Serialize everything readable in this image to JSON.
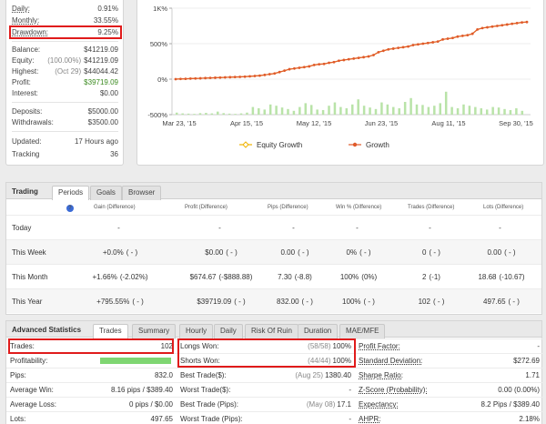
{
  "stats": {
    "daily": {
      "label": "Daily:",
      "value": "0.91%"
    },
    "monthly": {
      "label": "Monthly:",
      "value": "33.55%"
    },
    "drawdown": {
      "label": "Drawdown:",
      "value": "9.25%"
    },
    "balance": {
      "label": "Balance:",
      "value": "$41219.09"
    },
    "equity": {
      "label": "Equity:",
      "note": "(100.00%)",
      "value": "$41219.09"
    },
    "highest": {
      "label": "Highest:",
      "note": "(Oct 29)",
      "value": "$44044.42"
    },
    "profit": {
      "label": "Profit:",
      "value": "$39719.09"
    },
    "interest": {
      "label": "Interest:",
      "value": "$0.00"
    },
    "deposits": {
      "label": "Deposits:",
      "value": "$5000.00"
    },
    "withdrawals": {
      "label": "Withdrawals:",
      "value": "$3500.00"
    },
    "updated": {
      "label": "Updated:",
      "value": "17 Hours ago"
    },
    "tracking": {
      "label": "Tracking",
      "value": "36"
    }
  },
  "chart_data": {
    "type": "line",
    "x_ticks": [
      "Mar 23, '15",
      "Apr 15, '15",
      "May 12, '15",
      "Jun 23, '15",
      "Aug 11, '15",
      "Sep 30, '15"
    ],
    "y_ticks": [
      "1K%",
      "500%",
      "0%",
      "-500%"
    ],
    "ylim": [
      -500,
      1000
    ],
    "series": [
      {
        "name": "Equity Growth",
        "color": "#f0b400",
        "values": [
          0,
          3,
          5,
          8,
          10,
          12,
          15,
          18,
          20,
          22,
          25,
          28,
          30,
          32,
          35,
          40,
          45,
          50,
          60,
          70,
          80,
          100,
          120,
          140,
          150,
          160,
          170,
          180,
          200,
          210,
          215,
          230,
          240,
          260,
          270,
          280,
          290,
          300,
          310,
          320,
          340,
          380,
          400,
          420,
          430,
          440,
          450,
          460,
          480,
          490,
          500,
          510,
          520,
          530,
          560,
          570,
          580,
          600,
          610,
          620,
          640,
          700,
          720,
          730,
          740,
          750,
          760,
          770,
          780,
          790,
          800,
          805
        ]
      },
      {
        "name": "Growth",
        "color": "#e05a2a",
        "values": [
          0,
          3,
          5,
          8,
          10,
          12,
          15,
          18,
          20,
          22,
          25,
          28,
          30,
          32,
          35,
          40,
          45,
          50,
          60,
          70,
          80,
          100,
          120,
          140,
          150,
          160,
          170,
          180,
          200,
          210,
          215,
          230,
          240,
          260,
          270,
          280,
          290,
          300,
          310,
          320,
          340,
          380,
          400,
          420,
          430,
          440,
          450,
          460,
          480,
          490,
          500,
          510,
          520,
          530,
          560,
          570,
          580,
          600,
          610,
          620,
          640,
          700,
          720,
          730,
          740,
          750,
          760,
          770,
          780,
          790,
          800,
          805
        ]
      }
    ],
    "bars": [
      8,
      5,
      4,
      3,
      6,
      7,
      5,
      12,
      6,
      4,
      3,
      5,
      8,
      30,
      25,
      20,
      40,
      35,
      28,
      22,
      15,
      30,
      45,
      38,
      20,
      18,
      35,
      48,
      30,
      25,
      40,
      60,
      35,
      28,
      22,
      48,
      40,
      30,
      25,
      50,
      65,
      40,
      38,
      30,
      35,
      45,
      90,
      30,
      25,
      40,
      35,
      30,
      25,
      20,
      30,
      28,
      22,
      18,
      25,
      15
    ],
    "bars_color": "#b9e3a8"
  },
  "trading": {
    "title": "Trading",
    "tabs": [
      "Periods",
      "Goals",
      "Browser"
    ],
    "headers": [
      "Gain (Difference)",
      "Profit (Difference)",
      "Pips (Difference)",
      "Win % (Difference)",
      "Trades (Difference)",
      "Lots (Difference)"
    ],
    "rows": [
      {
        "label": "Today",
        "gain": "-",
        "gain_diff": "",
        "profit": "-",
        "profit_diff": "",
        "pips": "-",
        "pips_diff": "",
        "win": "-",
        "win_diff": "",
        "trades": "-",
        "trades_diff": "",
        "lots": "-",
        "lots_diff": ""
      },
      {
        "label": "This Week",
        "gain": "+0.0%",
        "gain_diff": "( - )",
        "profit": "$0.00",
        "profit_diff": "( - )",
        "pips": "0.00",
        "pips_diff": "( - )",
        "win": "0%",
        "win_diff": "( - )",
        "trades": "0",
        "trades_diff": "( - )",
        "lots": "0.00",
        "lots_diff": "( - )"
      },
      {
        "label": "This Month",
        "gain": "+1.66%",
        "gain_diff": "(-2.02%)",
        "profit": "$674.67",
        "profit_diff": "(-$888.88)",
        "pips": "7.30",
        "pips_diff": "(-8.8)",
        "win": "100%",
        "win_diff": "(0%)",
        "trades": "2",
        "trades_diff": "(-1)",
        "lots": "18.68",
        "lots_diff": "(-10.67)"
      },
      {
        "label": "This Year",
        "gain": "+795.55%",
        "gain_diff": "( - )",
        "profit": "$39719.09",
        "profit_diff": "( - )",
        "pips": "832.00",
        "pips_diff": "( - )",
        "win": "100%",
        "win_diff": "( - )",
        "trades": "102",
        "trades_diff": "( - )",
        "lots": "497.65",
        "lots_diff": "( - )"
      }
    ]
  },
  "advanced": {
    "title": "Advanced Statistics",
    "tabs": [
      "Trades",
      "Summary",
      "Hourly",
      "Daily",
      "Risk Of Ruin",
      "Duration",
      "MAE/MFE"
    ],
    "col1": [
      {
        "label": "Trades:",
        "note": "",
        "value": "102"
      },
      {
        "label": "Profitability:",
        "note": "",
        "value": ""
      },
      {
        "label": "Pips:",
        "note": "",
        "value": "832.0"
      },
      {
        "label": "Average Win:",
        "note": "",
        "value": "8.16 pips / $389.40"
      },
      {
        "label": "Average Loss:",
        "note": "",
        "value": "0 pips / $0.00"
      },
      {
        "label": "Lots:",
        "note": "",
        "value": "497.65"
      }
    ],
    "col2": [
      {
        "label": "Longs Won:",
        "note": "(58/58)",
        "value": "100%"
      },
      {
        "label": "Shorts Won:",
        "note": "(44/44)",
        "value": "100%"
      },
      {
        "label": "Best Trade($):",
        "note": "(Aug 25)",
        "value": "1380.40"
      },
      {
        "label": "Worst Trade($):",
        "note": "",
        "value": "-"
      },
      {
        "label": "Best Trade (Pips):",
        "note": "(May 08)",
        "value": "17.1"
      },
      {
        "label": "Worst Trade (Pips):",
        "note": "",
        "value": "-"
      }
    ],
    "col3": [
      {
        "label": "Profit Factor:",
        "note": "",
        "value": "-"
      },
      {
        "label": "Standard Deviation:",
        "note": "",
        "value": "$272.69"
      },
      {
        "label": "Sharpe Ratio:",
        "note": "",
        "value": "1.71"
      },
      {
        "label": "Z-Score (Probability):",
        "note": "",
        "value": "0.00 (0.00%)"
      },
      {
        "label": "Expectancy:",
        "note": "",
        "value": "8.2 Pips / $389.40"
      },
      {
        "label": "AHPR:",
        "note": "",
        "value": "2.18%"
      }
    ],
    "profitability": 1.0
  }
}
